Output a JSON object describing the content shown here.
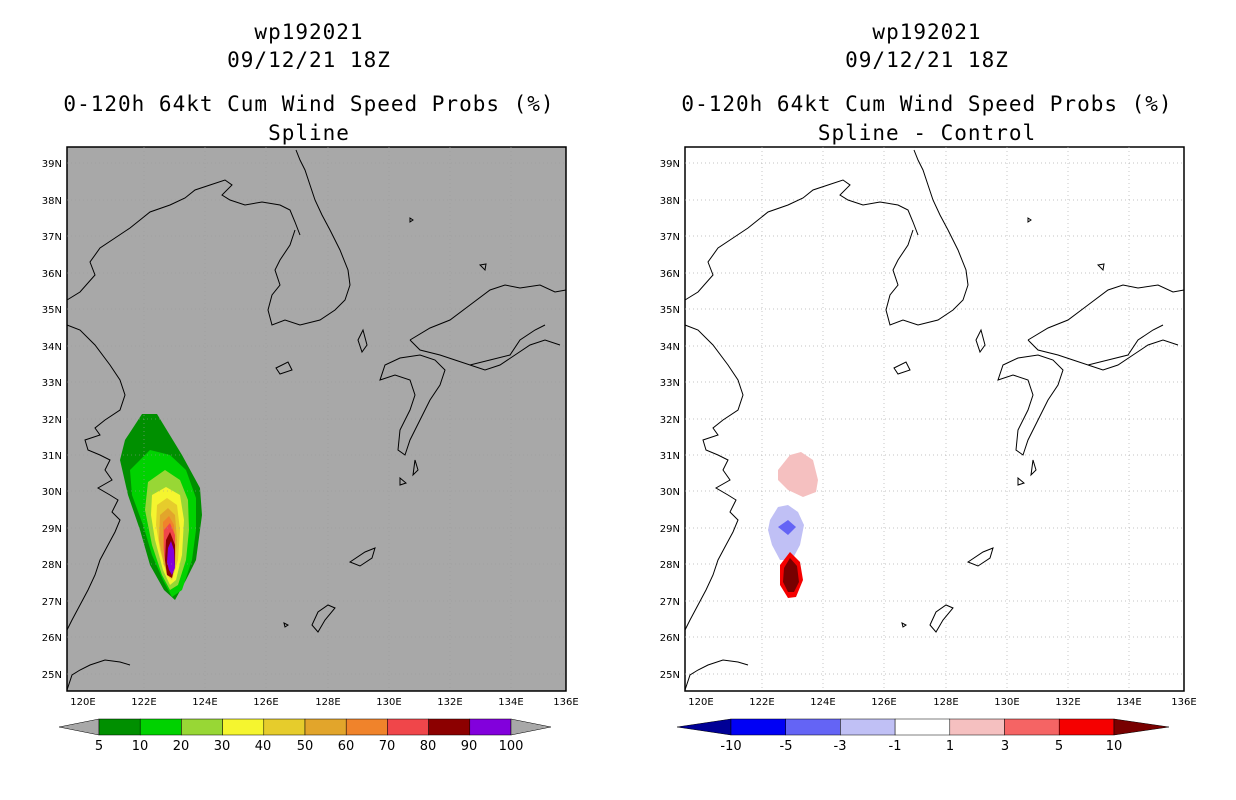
{
  "left_panel": {
    "header": {
      "storm_id": "wp192021",
      "datetime": "09/12/21 18Z",
      "product": "0-120h 64kt Cum Wind Speed Probs (%)",
      "method": "Spline"
    },
    "map": {
      "lat_labels": [
        "39N",
        "38N",
        "37N",
        "36N",
        "35N",
        "34N",
        "33N",
        "32N",
        "31N",
        "30N",
        "29N",
        "28N",
        "27N",
        "26N",
        "25N"
      ],
      "lon_labels": [
        "120E",
        "122E",
        "124E",
        "126E",
        "128E",
        "130E",
        "132E",
        "134E",
        "136E"
      ],
      "background_color": "#a8a8a8"
    },
    "colorbar": {
      "labels": [
        "5",
        "10",
        "20",
        "30",
        "40",
        "50",
        "60",
        "70",
        "80",
        "90",
        "100"
      ],
      "colors": [
        "#008f00",
        "#00d200",
        "#98d735",
        "#f5f52f",
        "#e6cc2c",
        "#e2a52b",
        "#f0832b",
        "#f0464a",
        "#8c0000",
        "#8200dc"
      ]
    }
  },
  "right_panel": {
    "header": {
      "storm_id": "wp192021",
      "datetime": "09/12/21 18Z",
      "product": "0-120h 64kt Cum Wind Speed Probs (%)",
      "method": "Spline - Control"
    },
    "map": {
      "lat_labels": [
        "39N",
        "38N",
        "37N",
        "36N",
        "35N",
        "34N",
        "33N",
        "32N",
        "31N",
        "30N",
        "29N",
        "28N",
        "27N",
        "26N",
        "25N"
      ],
      "lon_labels": [
        "120E",
        "122E",
        "124E",
        "126E",
        "128E",
        "130E",
        "132E",
        "134E",
        "136E"
      ],
      "background_color": "#ffffff"
    },
    "colorbar": {
      "labels": [
        "-10",
        "-5",
        "-3",
        "-1",
        "1",
        "3",
        "5",
        "10"
      ],
      "colors": [
        "#000096",
        "#0000f5",
        "#6464f5",
        "#c0c0f5",
        "#ffffff",
        "#f5c0c0",
        "#f56464",
        "#f50000",
        "#780000"
      ]
    }
  }
}
